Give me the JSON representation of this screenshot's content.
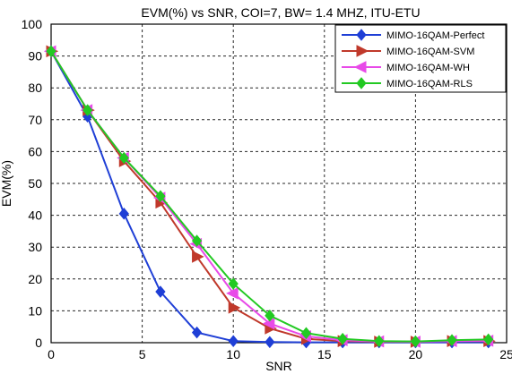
{
  "chart_data": {
    "type": "line",
    "title": "EVM(%) vs SNR, COI=7, BW= 1.4 MHZ, ITU-ETU",
    "xlabel": "SNR",
    "ylabel": "EVM(%)",
    "xlim": [
      0,
      25
    ],
    "ylim": [
      0,
      100
    ],
    "xticks": [
      0,
      5,
      10,
      15,
      20,
      25
    ],
    "yticks": [
      0,
      10,
      20,
      30,
      40,
      50,
      60,
      70,
      80,
      90,
      100
    ],
    "grid": true,
    "legend_position": "top-right",
    "x": [
      0,
      2,
      4,
      6,
      8,
      10,
      12,
      14,
      16,
      18,
      20,
      22,
      24
    ],
    "series": [
      {
        "name": "MIMO-16QAM-Perfect",
        "color": "#1f3fd6",
        "marker": "diamond",
        "values": [
          91.5,
          71,
          40.5,
          16,
          3.2,
          0.5,
          0.2,
          0.1,
          0.1,
          0.1,
          0.1,
          0.1,
          0.1
        ]
      },
      {
        "name": "MIMO-16QAM-SVM",
        "color": "#c0392b",
        "marker": "triangle-right",
        "values": [
          91.5,
          73,
          57,
          44,
          27,
          11,
          4.5,
          1.2,
          0.5,
          0.3,
          0.3,
          0.5,
          0.5
        ]
      },
      {
        "name": "MIMO-16QAM-WH",
        "color": "#e84ae8",
        "marker": "triangle-left",
        "values": [
          91.5,
          73,
          58,
          45.5,
          31,
          15.5,
          6,
          2,
          0.8,
          0.4,
          0.3,
          0.5,
          0.6
        ]
      },
      {
        "name": "MIMO-16QAM-RLS",
        "color": "#22c922",
        "marker": "diamond",
        "values": [
          91.5,
          73,
          58,
          46,
          32,
          18.5,
          8.5,
          3,
          1.2,
          0.5,
          0.4,
          0.8,
          1.0
        ]
      }
    ]
  }
}
